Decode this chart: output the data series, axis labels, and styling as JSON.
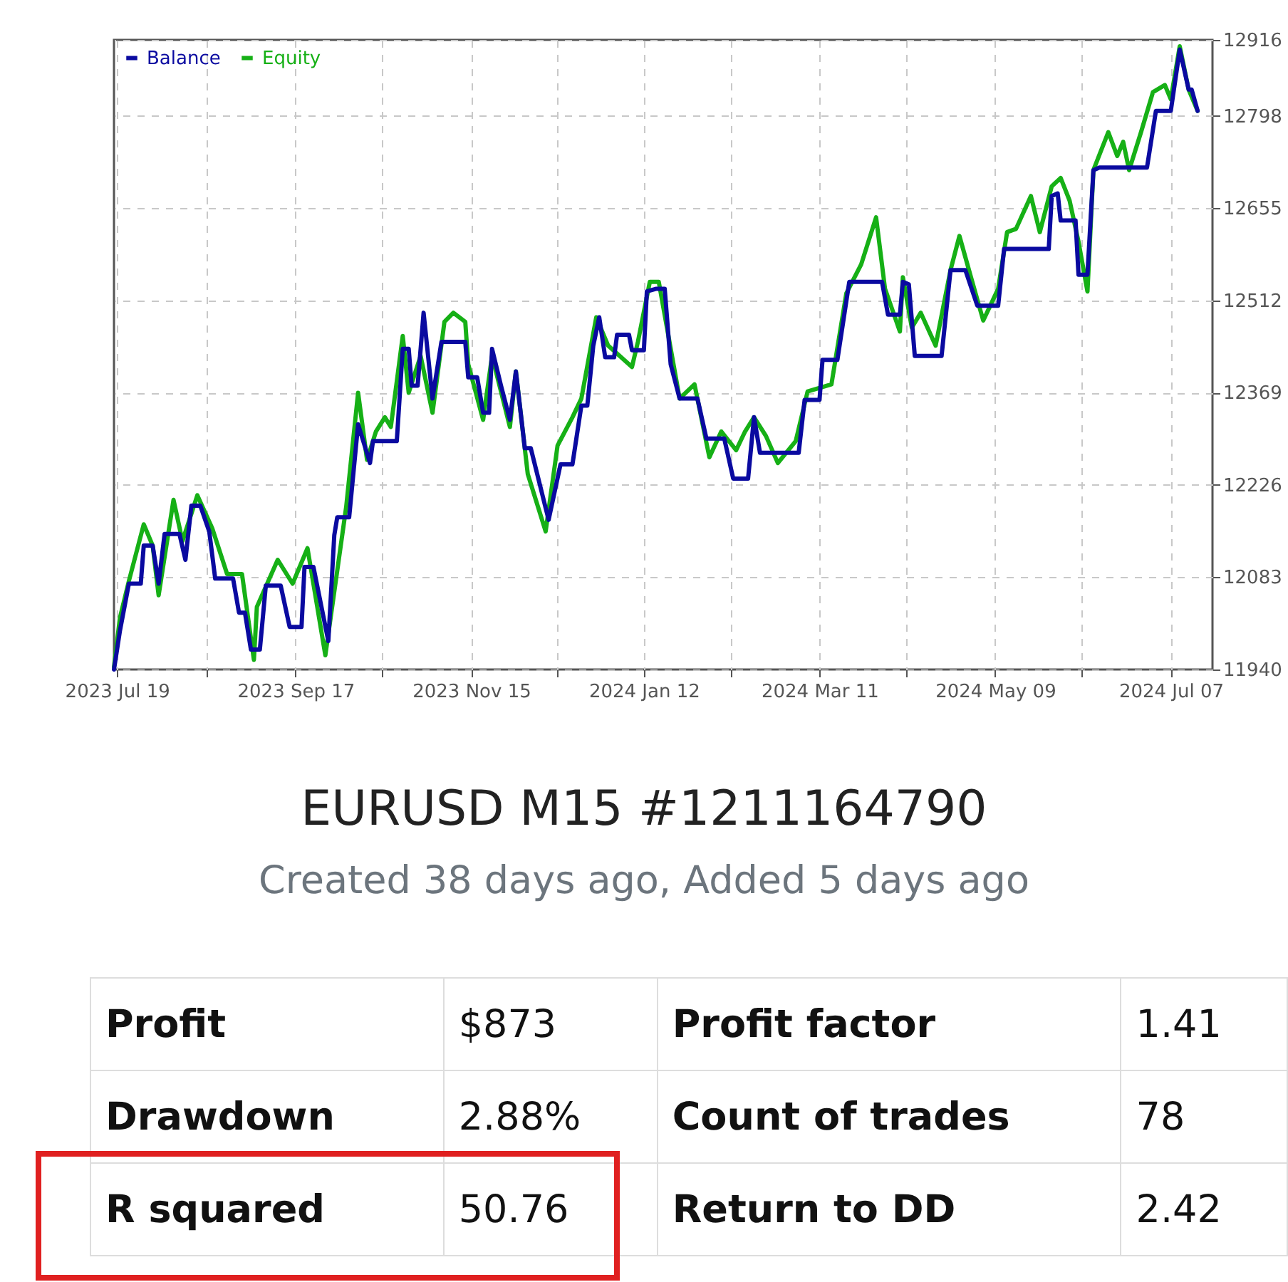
{
  "chart_data": {
    "type": "line",
    "title": "EURUSD M15 #1211164790",
    "subtitle": "Created 38 days ago, Added 5 days ago",
    "legend": "top left",
    "grid": true,
    "xlim": [
      "2023-07-18",
      "2024-07-21"
    ],
    "xticks": [
      {
        "value": "2023-07-19",
        "label": "2023 Jul 19"
      },
      {
        "value": "2023-08-18",
        "label": null
      },
      {
        "value": "2023-09-17",
        "label": "2023 Sep 17"
      },
      {
        "value": "2023-10-16",
        "label": null
      },
      {
        "value": "2023-11-15",
        "label": "2023 Nov 15"
      },
      {
        "value": "2023-12-14",
        "label": null
      },
      {
        "value": "2024-01-12",
        "label": "2024 Jan 12"
      },
      {
        "value": "2024-02-10",
        "label": null
      },
      {
        "value": "2024-03-11",
        "label": "2024 Mar 11"
      },
      {
        "value": "2024-04-09",
        "label": null
      },
      {
        "value": "2024-05-09",
        "label": "2024 May 09"
      },
      {
        "value": "2024-06-07",
        "label": null
      },
      {
        "value": "2024-07-07",
        "label": "2024 Jul 07"
      }
    ],
    "ylim": [
      11940,
      12916
    ],
    "yticks": [
      11940,
      12083,
      12226,
      12369,
      12512,
      12655,
      12798,
      12916
    ],
    "series": [
      {
        "name": "Balance",
        "color": "#0a0aa0",
        "x": [
          "2023-07-18",
          "2023-07-20",
          "2023-07-23",
          "2023-07-27",
          "2023-07-28",
          "2023-07-31",
          "2023-08-02",
          "2023-08-04",
          "2023-08-09",
          "2023-08-11",
          "2023-08-13",
          "2023-08-16",
          "2023-08-19",
          "2023-08-21",
          "2023-08-27",
          "2023-08-29",
          "2023-08-31",
          "2023-09-02",
          "2023-09-05",
          "2023-09-07",
          "2023-09-12",
          "2023-09-15",
          "2023-09-19",
          "2023-09-20",
          "2023-09-23",
          "2023-09-28",
          "2023-09-30",
          "2023-10-01",
          "2023-10-05",
          "2023-10-08",
          "2023-10-12",
          "2023-10-13",
          "2023-10-21",
          "2023-10-23",
          "2023-10-25",
          "2023-10-26",
          "2023-10-28",
          "2023-10-30",
          "2023-11-02",
          "2023-11-05",
          "2023-11-13",
          "2023-11-14",
          "2023-11-17",
          "2023-11-19",
          "2023-11-21",
          "2023-11-22",
          "2023-11-25",
          "2023-11-28",
          "2023-11-30",
          "2023-12-03",
          "2023-12-05",
          "2023-12-11",
          "2023-12-15",
          "2023-12-19",
          "2023-12-22",
          "2023-12-24",
          "2023-12-26",
          "2023-12-28",
          "2023-12-30",
          "2024-01-02",
          "2024-01-03",
          "2024-01-07",
          "2024-01-08",
          "2024-01-12",
          "2024-01-13",
          "2024-01-16",
          "2024-01-19",
          "2024-01-21",
          "2024-01-24",
          "2024-01-30",
          "2024-02-02",
          "2024-02-08",
          "2024-02-11",
          "2024-02-16",
          "2024-02-18",
          "2024-02-20",
          "2024-03-04",
          "2024-03-06",
          "2024-03-11",
          "2024-03-12",
          "2024-03-17",
          "2024-03-21",
          "2024-04-01",
          "2024-04-03",
          "2024-04-07",
          "2024-04-08",
          "2024-04-10",
          "2024-04-12",
          "2024-04-21",
          "2024-04-24",
          "2024-04-29",
          "2024-05-03",
          "2024-05-10",
          "2024-05-12",
          "2024-05-27",
          "2024-05-28",
          "2024-05-30",
          "2024-05-31",
          "2024-06-05",
          "2024-06-06",
          "2024-06-09",
          "2024-06-11",
          "2024-06-13",
          "2024-06-29",
          "2024-07-02",
          "2024-07-07",
          "2024-07-10",
          "2024-07-13",
          "2024-07-14",
          "2024-07-16"
        ],
        "values": [
          11940,
          12000,
          12073,
          12073,
          12132,
          12132,
          12073,
          12150,
          12150,
          12110,
          12194,
          12194,
          12154,
          12081,
          12081,
          12028,
          12028,
          11971,
          11971,
          12070,
          12070,
          12006,
          12006,
          12099,
          12099,
          11984,
          12148,
          12176,
          12176,
          12320,
          12260,
          12294,
          12294,
          12437,
          12437,
          12380,
          12380,
          12493,
          12360,
          12448,
          12448,
          12393,
          12393,
          12338,
          12338,
          12437,
          12380,
          12327,
          12402,
          12283,
          12283,
          12172,
          12258,
          12258,
          12349,
          12349,
          12442,
          12486,
          12424,
          12424,
          12459,
          12459,
          12435,
          12435,
          12526,
          12530,
          12530,
          12413,
          12360,
          12360,
          12298,
          12298,
          12236,
          12236,
          12331,
          12276,
          12276,
          12358,
          12358,
          12420,
          12420,
          12541,
          12541,
          12490,
          12490,
          12541,
          12537,
          12426,
          12426,
          12559,
          12559,
          12504,
          12504,
          12592,
          12592,
          12674,
          12678,
          12636,
          12636,
          12552,
          12552,
          12714,
          12718,
          12718,
          12806,
          12806,
          12901,
          12839,
          12839,
          12806
        ]
      },
      {
        "name": "Equity",
        "color": "#16b016",
        "x": [
          "2023-07-18",
          "2023-07-20",
          "2023-07-23",
          "2023-07-28",
          "2023-07-31",
          "2023-08-02",
          "2023-08-07",
          "2023-08-10",
          "2023-08-15",
          "2023-08-20",
          "2023-08-25",
          "2023-08-30",
          "2023-09-03",
          "2023-09-04",
          "2023-09-11",
          "2023-09-16",
          "2023-09-21",
          "2023-09-27",
          "2023-10-04",
          "2023-10-08",
          "2023-10-11",
          "2023-10-14",
          "2023-10-17",
          "2023-10-19",
          "2023-10-23",
          "2023-10-25",
          "2023-10-29",
          "2023-11-02",
          "2023-11-06",
          "2023-11-09",
          "2023-11-13",
          "2023-11-14",
          "2023-11-19",
          "2023-11-22",
          "2023-11-28",
          "2023-11-30",
          "2023-12-04",
          "2023-12-10",
          "2023-12-14",
          "2023-12-19",
          "2023-12-22",
          "2023-12-27",
          "2023-12-31",
          "2024-01-08",
          "2024-01-10",
          "2024-01-14",
          "2024-01-17",
          "2024-01-24",
          "2024-01-29",
          "2024-02-03",
          "2024-02-07",
          "2024-02-12",
          "2024-02-15",
          "2024-02-18",
          "2024-02-22",
          "2024-02-26",
          "2024-03-03",
          "2024-03-07",
          "2024-03-15",
          "2024-03-20",
          "2024-03-25",
          "2024-03-30",
          "2024-04-02",
          "2024-04-07",
          "2024-04-08",
          "2024-04-11",
          "2024-04-14",
          "2024-04-19",
          "2024-04-24",
          "2024-04-27",
          "2024-05-01",
          "2024-05-05",
          "2024-05-10",
          "2024-05-13",
          "2024-05-16",
          "2024-05-21",
          "2024-05-24",
          "2024-05-28",
          "2024-05-31",
          "2024-06-03",
          "2024-06-06",
          "2024-06-09",
          "2024-06-11",
          "2024-06-16",
          "2024-06-19",
          "2024-06-21",
          "2024-06-23",
          "2024-06-27",
          "2024-07-01",
          "2024-07-05",
          "2024-07-07",
          "2024-07-10",
          "2024-07-13",
          "2024-07-16"
        ],
        "values": [
          11944,
          12020,
          12077,
          12165,
          12132,
          12055,
          12203,
          12139,
          12210,
          12159,
          12088,
          12088,
          11955,
          12037,
          12110,
          12073,
          12128,
          11962,
          12192,
          12369,
          12265,
          12309,
          12331,
          12316,
          12457,
          12369,
          12426,
          12338,
          12479,
          12493,
          12479,
          12413,
          12327,
          12426,
          12316,
          12402,
          12243,
          12154,
          12287,
          12331,
          12360,
          12486,
          12442,
          12409,
          12448,
          12541,
          12541,
          12360,
          12382,
          12269,
          12309,
          12280,
          12309,
          12331,
          12302,
          12260,
          12294,
          12371,
          12382,
          12523,
          12568,
          12641,
          12530,
          12464,
          12548,
          12470,
          12493,
          12442,
          12559,
          12612,
          12546,
          12481,
          12530,
          12618,
          12623,
          12674,
          12618,
          12689,
          12702,
          12667,
          12603,
          12526,
          12714,
          12773,
          12736,
          12758,
          12714,
          12773,
          12835,
          12846,
          12824,
          12906,
          12839,
          12806
        ]
      }
    ],
    "annotations": [
      "Profit",
      "$873",
      "Profit factor",
      "1.41",
      "Drawdown",
      "2.88%",
      "Count of trades",
      "78",
      "R squared",
      "50.76",
      "Return to DD",
      "2.42"
    ]
  }
}
